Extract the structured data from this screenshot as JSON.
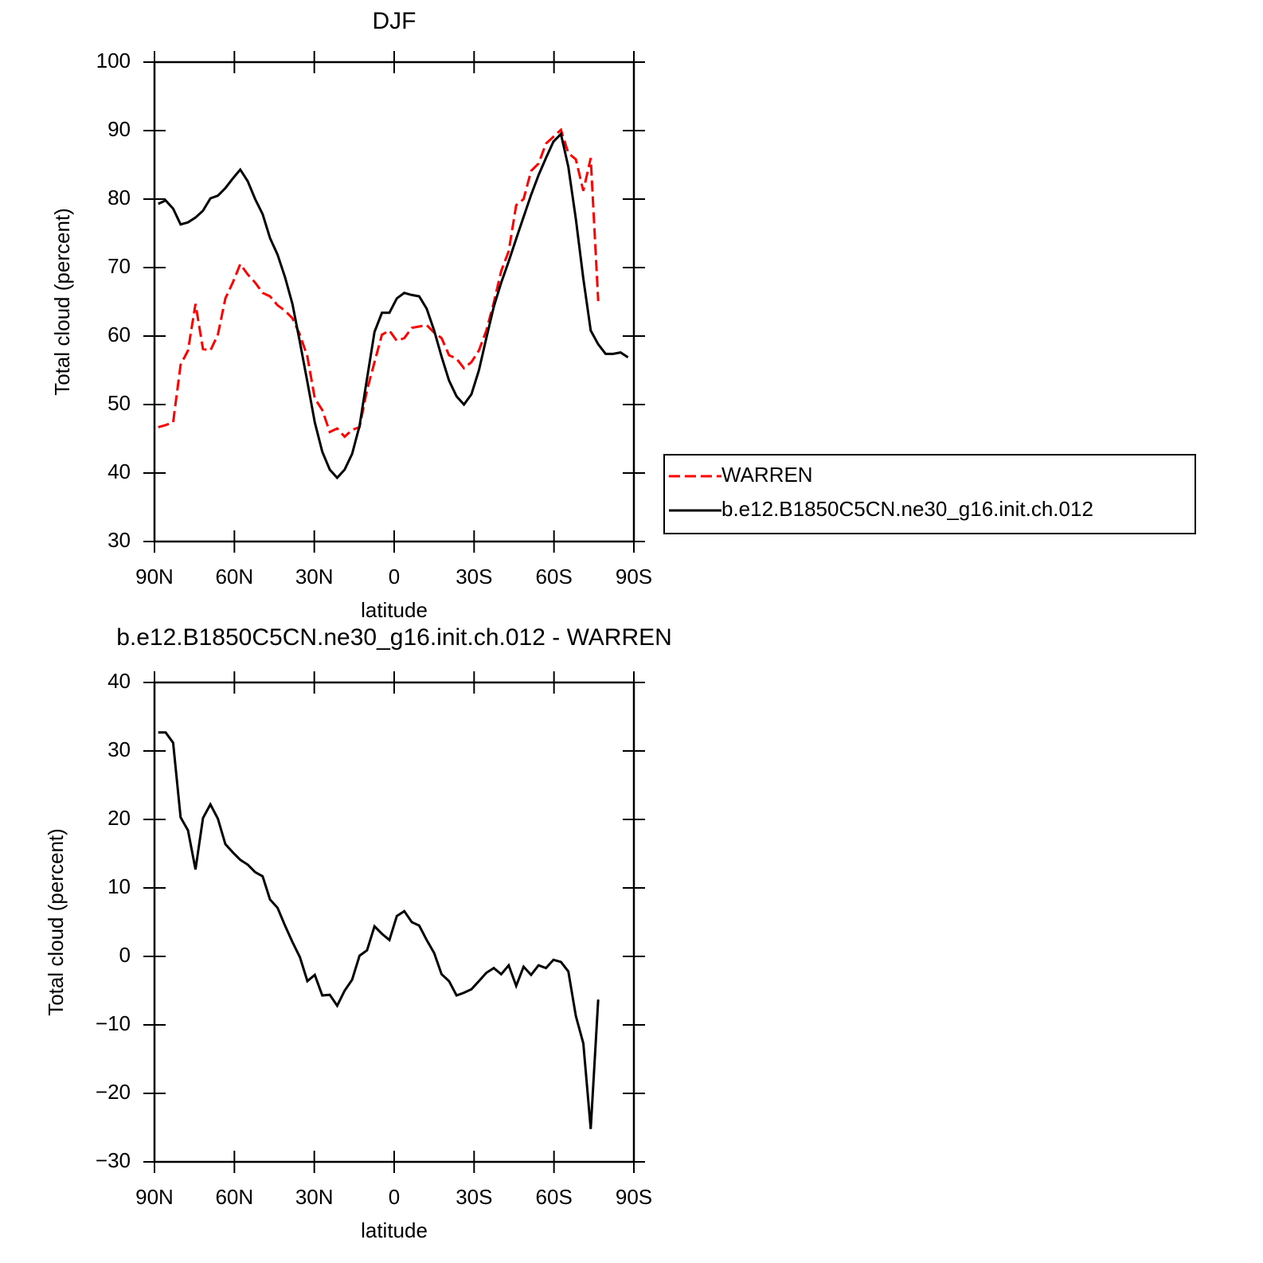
{
  "chart_data": [
    {
      "type": "line",
      "title": "DJF",
      "x_label": "latitude",
      "y_label": "Total cloud (percent)",
      "x": [
        88.6,
        85.8,
        83,
        80.2,
        77.4,
        74.6,
        71.8,
        69,
        66.2,
        63.4,
        60.6,
        57.8,
        55,
        52.2,
        49.4,
        46.6,
        43.8,
        41,
        38.2,
        35.4,
        32.6,
        29.8,
        27,
        24.2,
        21.4,
        18.6,
        15.8,
        13,
        10.2,
        7.4,
        4.6,
        1.8,
        -1,
        -3.8,
        -6.6,
        -9.4,
        -12.2,
        -15,
        -17.8,
        -20.6,
        -23.4,
        -26.2,
        -29,
        -31.8,
        -34.6,
        -37.4,
        -40.2,
        -43,
        -45.8,
        -48.6,
        -51.4,
        -54.2,
        -57,
        -59.8,
        -62.6,
        -65.4,
        -68.2,
        -71,
        -73.8,
        -76.6,
        -79.4,
        -82.2,
        -85,
        -87.8
      ],
      "xlim": [
        90,
        -90
      ],
      "xticks": [
        {
          "value": 90,
          "label": "90N"
        },
        {
          "value": 60,
          "label": "60N"
        },
        {
          "value": 30,
          "label": "30N"
        },
        0,
        {
          "value": -30,
          "label": "30S"
        },
        {
          "value": -60,
          "label": "60S"
        },
        {
          "value": -90,
          "label": "90S"
        }
      ],
      "ylim": [
        30,
        100
      ],
      "yticks": [
        30,
        40,
        50,
        60,
        70,
        80,
        90,
        100
      ],
      "legend": "right",
      "series": [
        {
          "name": "WARREN",
          "color": "#ff0000",
          "style": "dashed",
          "values": [
            46.7,
            47,
            47.4,
            55.8,
            57.9,
            64.7,
            58.1,
            57.9,
            60.2,
            65.5,
            67.8,
            70.5,
            69,
            67.8,
            66.3,
            65.8,
            64.5,
            63.7,
            62.6,
            60.2,
            57,
            50.9,
            49.2,
            46,
            46.5,
            45.3,
            46.3,
            46.7,
            52.1,
            56.2,
            60.2,
            60.8,
            59.3,
            59.7,
            61.2,
            61.4,
            61.6,
            60.5,
            59.7,
            57.2,
            56.7,
            55.3,
            56.2,
            57.9,
            60.8,
            64.9,
            69.5,
            72.4,
            79.1,
            80,
            84.1,
            85.2,
            88.1,
            89.1,
            90.1,
            86.7,
            85.8,
            81.2,
            86,
            65.1,
            null,
            null,
            null,
            null
          ]
        },
        {
          "name": "b.e12.B1850C5CN.ne30_g16.init.ch.012",
          "color": "#000000",
          "style": "solid",
          "values": [
            79.3,
            79.8,
            78.6,
            76.3,
            76.6,
            77.3,
            78.3,
            80.1,
            80.5,
            81.6,
            83,
            84.3,
            82.6,
            80,
            77.8,
            74.3,
            71.9,
            68.6,
            64.7,
            59.1,
            53.3,
            47.4,
            43.1,
            40.5,
            39.3,
            40.5,
            42.8,
            46.9,
            53.8,
            60.6,
            63.4,
            63.4,
            65.5,
            66.3,
            66,
            65.8,
            64,
            60.8,
            57,
            53.5,
            51.2,
            50,
            51.5,
            55,
            59.7,
            64.3,
            67.8,
            70.9,
            74.2,
            77.4,
            80.6,
            83.5,
            86,
            88.4,
            89.5,
            84.7,
            77.1,
            68.4,
            60.8,
            58.8,
            57.4,
            57.4,
            57.6,
            56.9
          ]
        }
      ]
    },
    {
      "type": "line",
      "title": "b.e12.B1850C5CN.ne30_g16.init.ch.012 - WARREN",
      "x_label": "latitude",
      "y_label": "Total cloud (percent)",
      "x": [
        88.6,
        85.8,
        83,
        80.2,
        77.4,
        74.6,
        71.8,
        69,
        66.2,
        63.4,
        60.6,
        57.8,
        55,
        52.2,
        49.4,
        46.6,
        43.8,
        41,
        38.2,
        35.4,
        32.6,
        29.8,
        27,
        24.2,
        21.4,
        18.6,
        15.8,
        13,
        10.2,
        7.4,
        4.6,
        1.8,
        -1,
        -3.8,
        -6.6,
        -9.4,
        -12.2,
        -15,
        -17.8,
        -20.6,
        -23.4,
        -26.2,
        -29,
        -31.8,
        -34.6,
        -37.4,
        -40.2,
        -43,
        -45.8,
        -48.6,
        -51.4,
        -54.2,
        -57,
        -59.8,
        -62.6,
        -65.4,
        -68.2,
        -71,
        -73.8,
        -76.6,
        -79.4,
        -82.2,
        -85,
        -87.8
      ],
      "xlim": [
        90,
        -90
      ],
      "xticks": [
        {
          "value": 90,
          "label": "90N"
        },
        {
          "value": 60,
          "label": "60N"
        },
        {
          "value": 30,
          "label": "30N"
        },
        0,
        {
          "value": -30,
          "label": "30S"
        },
        {
          "value": -60,
          "label": "60S"
        },
        {
          "value": -90,
          "label": "90S"
        }
      ],
      "ylim": [
        -30,
        40
      ],
      "yticks": [
        {
          "value": -30,
          "label": "−30"
        },
        {
          "value": -20,
          "label": "−20"
        },
        {
          "value": -10,
          "label": "−10"
        },
        0,
        10,
        20,
        30,
        40
      ],
      "series": [
        {
          "color": "#000000",
          "style": "solid",
          "values": [
            32.7,
            32.7,
            31.2,
            20.3,
            18.4,
            12.7,
            20.2,
            22.2,
            20.1,
            16.4,
            15.2,
            14.1,
            13.4,
            12.3,
            11.7,
            8.3,
            7.1,
            4.5,
            2.1,
            -0.1,
            -3.6,
            -2.7,
            -5.7,
            -5.6,
            -7.2,
            -5,
            -3.4,
            0.1,
            0.9,
            4.4,
            3.3,
            2.4,
            5.9,
            6.6,
            5,
            4.5,
            2.4,
            0.5,
            -2.6,
            -3.6,
            -5.7,
            -5.3,
            -4.8,
            -3.6,
            -2.4,
            -1.7,
            -2.6,
            -1.3,
            -4.3,
            -1.5,
            -2.7,
            -1.3,
            -1.7,
            -0.5,
            -0.8,
            -2.2,
            -8.7,
            -12.7,
            -25.2,
            -6.3,
            null,
            null,
            null,
            null
          ]
        }
      ]
    }
  ]
}
